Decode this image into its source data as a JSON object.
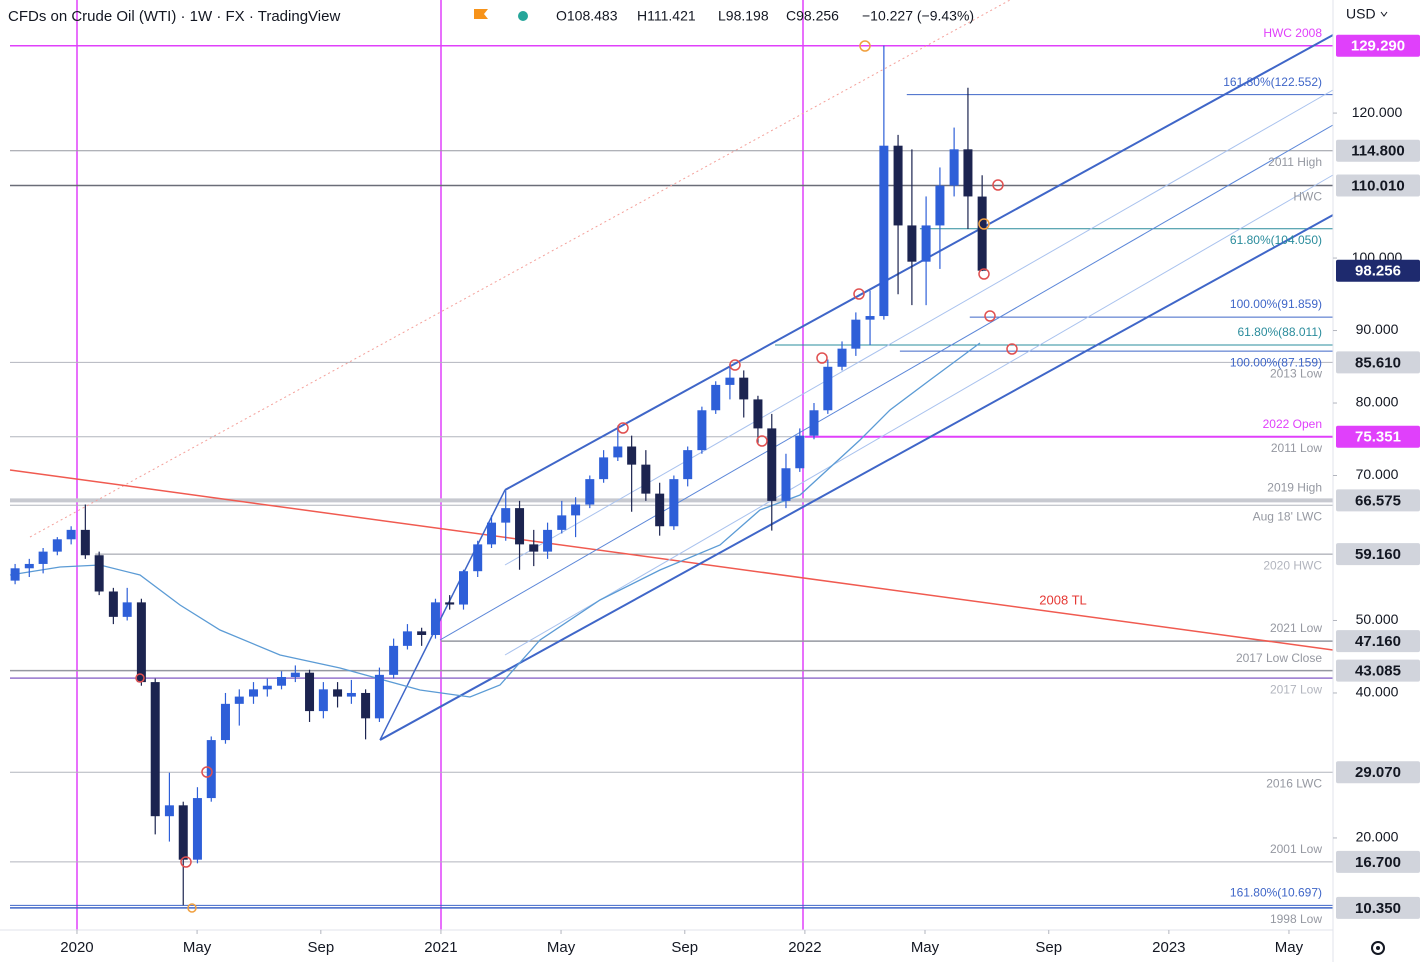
{
  "chart_data": {
    "type": "candlestick",
    "title": "CFDs on Crude Oil (WTI) · 1W · FX · TradingView",
    "ohlc_text": [
      "O108.483",
      "H111.421",
      "L98.198",
      "C98.256",
      "−10.227 (−9.43%)"
    ],
    "currency": "USD",
    "trendline_label": "2008 TL",
    "up_color": "#2e5fd8",
    "down_color": "#1c2450",
    "xlim": [
      2019.816,
      2023.451
    ],
    "ylim": [
      7.3,
      135.6
    ],
    "xticks": [
      {
        "value": 2020,
        "label": "2020"
      },
      {
        "value": 2020.33,
        "label": "May"
      },
      {
        "value": 2020.67,
        "label": "Sep"
      },
      {
        "value": 2021,
        "label": "2021"
      },
      {
        "value": 2021.33,
        "label": "May"
      },
      {
        "value": 2021.67,
        "label": "Sep"
      },
      {
        "value": 2022,
        "label": "2022"
      },
      {
        "value": 2022.33,
        "label": "May"
      },
      {
        "value": 2022.67,
        "label": "Sep"
      },
      {
        "value": 2023,
        "label": "2023"
      },
      {
        "value": 2023.33,
        "label": "May"
      }
    ],
    "yticks": [
      {
        "value": 120,
        "label": "120.000"
      },
      {
        "value": 100,
        "label": "100.000"
      },
      {
        "value": 90,
        "label": "90.000"
      },
      {
        "value": 80,
        "label": "80.000"
      },
      {
        "value": 70,
        "label": "70.000"
      },
      {
        "value": 50,
        "label": "50.000"
      },
      {
        "value": 40,
        "label": "40.000"
      },
      {
        "value": 20,
        "label": "20.000"
      }
    ],
    "x": [
      2019.83,
      2019.869,
      2019.907,
      2019.946,
      2019.984,
      2020.023,
      2020.061,
      2020.1,
      2020.138,
      2020.177,
      2020.215,
      2020.254,
      2020.292,
      2020.331,
      2020.369,
      2020.408,
      2020.446,
      2020.485,
      2020.523,
      2020.562,
      2020.6,
      2020.639,
      2020.677,
      2020.716,
      2020.754,
      2020.793,
      2020.831,
      2020.87,
      2020.908,
      2020.947,
      2020.985,
      2021.024,
      2021.062,
      2021.101,
      2021.139,
      2021.178,
      2021.216,
      2021.255,
      2021.293,
      2021.332,
      2021.37,
      2021.409,
      2021.447,
      2021.486,
      2021.524,
      2021.563,
      2021.601,
      2021.64,
      2021.678,
      2021.717,
      2021.755,
      2021.794,
      2021.832,
      2021.871,
      2021.909,
      2021.948,
      2021.986,
      2022.025,
      2022.063,
      2022.102,
      2022.14,
      2022.179,
      2022.217,
      2022.256,
      2022.294,
      2022.333,
      2022.371,
      2022.41,
      2022.448,
      2022.487
    ],
    "open": [
      55.5,
      57.2,
      57.8,
      59.5,
      61.2,
      62.5,
      59.0,
      54.0,
      50.5,
      52.5,
      41.5,
      23.0,
      24.5,
      17.0,
      25.5,
      33.5,
      38.5,
      39.5,
      40.5,
      41.0,
      42.2,
      42.8,
      37.5,
      40.5,
      39.5,
      40.0,
      36.5,
      42.5,
      46.5,
      48.5,
      48.0,
      52.5,
      52.2,
      56.8,
      60.5,
      63.5,
      65.5,
      60.5,
      59.5,
      62.5,
      64.5,
      66.0,
      69.5,
      72.5,
      74.0,
      71.5,
      67.5,
      63.0,
      69.5,
      73.5,
      79.0,
      82.5,
      83.5,
      80.5,
      76.5,
      66.5,
      71.0,
      75.5,
      79.0,
      85.0,
      87.5,
      91.5,
      92.0,
      115.5,
      104.5,
      99.5,
      104.5,
      110.0,
      115.0,
      108.483
    ],
    "high": [
      57.8,
      58.5,
      60.0,
      61.5,
      63.0,
      66.0,
      59.5,
      54.5,
      54.5,
      53.0,
      42.0,
      29.0,
      25.0,
      27.0,
      34.0,
      40.0,
      40.5,
      41.5,
      42.0,
      43.0,
      43.8,
      43.2,
      41.5,
      41.5,
      41.8,
      40.5,
      43.5,
      47.5,
      49.5,
      49.0,
      53.0,
      53.5,
      57.0,
      61.0,
      64.5,
      67.9,
      66.5,
      62.5,
      63.5,
      66.5,
      67.0,
      70.0,
      73.5,
      76.9,
      75.5,
      73.5,
      69.0,
      70.0,
      74.0,
      79.5,
      83.0,
      85.4,
      84.5,
      81.0,
      78.5,
      73.0,
      76.5,
      80.0,
      86.0,
      88.5,
      92.5,
      95.5,
      129.3,
      117.0,
      115.0,
      108.5,
      112.5,
      118.0,
      123.5,
      111.421
    ],
    "low": [
      55.0,
      56.0,
      56.5,
      59.0,
      60.5,
      58.5,
      53.5,
      49.5,
      50.0,
      41.0,
      20.5,
      19.5,
      10.7,
      16.5,
      25.0,
      33.0,
      35.5,
      38.5,
      39.5,
      40.5,
      41.5,
      36.0,
      36.5,
      38.0,
      38.5,
      33.6,
      36.0,
      42.0,
      46.0,
      46.5,
      47.5,
      51.5,
      51.5,
      56.0,
      60.0,
      61.0,
      57.0,
      57.5,
      58.5,
      62.0,
      61.5,
      65.5,
      69.0,
      72.0,
      65.0,
      66.5,
      61.7,
      62.5,
      68.5,
      73.0,
      78.5,
      80.5,
      78.0,
      74.5,
      62.4,
      65.5,
      70.5,
      75.0,
      78.5,
      84.5,
      86.5,
      88.0,
      91.5,
      95.0,
      93.5,
      93.5,
      98.5,
      108.5,
      104.0,
      98.198
    ],
    "close": [
      57.2,
      57.8,
      59.5,
      61.2,
      62.5,
      59.0,
      54.0,
      50.5,
      52.5,
      41.5,
      23.0,
      24.5,
      17.0,
      25.5,
      33.5,
      38.5,
      39.5,
      40.5,
      41.0,
      42.2,
      42.8,
      37.5,
      40.5,
      39.5,
      40.0,
      36.5,
      42.5,
      46.5,
      48.5,
      48.0,
      52.5,
      52.2,
      56.8,
      60.5,
      63.5,
      65.5,
      60.5,
      59.5,
      62.5,
      64.5,
      66.0,
      69.5,
      72.5,
      74.0,
      71.5,
      67.5,
      63.0,
      69.5,
      73.5,
      79.0,
      82.5,
      83.5,
      80.5,
      76.5,
      66.5,
      71.0,
      75.5,
      79.0,
      85.0,
      87.5,
      91.5,
      92.0,
      115.5,
      104.5,
      99.5,
      104.5,
      110.0,
      115.0,
      108.5,
      98.256
    ],
    "levels": [
      {
        "value": 129.29,
        "label": "129.290",
        "note": "HWC 2008",
        "color": "#e040fb",
        "width": 1.5,
        "note_color": "#e040fb",
        "note_side": "above",
        "box_color": "#e040fb",
        "box_text": "#ffffff"
      },
      {
        "value": 122.552,
        "note": "161.80%(122.552)",
        "color": "#3f66c8",
        "note_color": "#3f66c8",
        "note_side": "above",
        "x_start": 2022.28
      },
      {
        "value": 114.8,
        "label": "114.800",
        "note": "2011 High",
        "color": "#9598a1",
        "note_color": "#9598a1",
        "note_side": "below",
        "box_color": "#d1d4dc",
        "box_text": "#131722"
      },
      {
        "value": 110.01,
        "label": "110.010",
        "note": "HWC",
        "color": "#6a6d78",
        "width": 1.5,
        "note_color": "#9598a1",
        "note_side": "below",
        "box_color": "#d1d4dc",
        "box_text": "#131722"
      },
      {
        "value": 104.05,
        "note": "61.80%(104.050)",
        "color": "#2a8c9c",
        "note_color": "#2a8c9c",
        "note_side": "below",
        "x_start": 2022.316
      },
      {
        "value": 98.256,
        "label": "98.256",
        "line": false,
        "box_color": "#1e2a6e",
        "box_text": "#ffffff"
      },
      {
        "value": 91.859,
        "note": "100.00%(91.859)",
        "color": "#3f66c8",
        "note_color": "#3f66c8",
        "note_side": "above",
        "x_start": 2022.453
      },
      {
        "value": 88.011,
        "note": "61.80%(88.011)",
        "color": "#2a8c9c",
        "note_color": "#2a8c9c",
        "note_side": "above",
        "x_start": 2021.918
      },
      {
        "value": 87.159,
        "note": "100.00%(87.159)",
        "color": "#3f66c8",
        "note_color": "#3f66c8",
        "note_side": "below",
        "x_start": 2022.261
      },
      {
        "value": 85.61,
        "label": "85.610",
        "note": "2013 Low",
        "color": "#b2b5be",
        "note_color": "#9598a1",
        "note_side": "below",
        "box_color": "#d1d4dc",
        "box_text": "#131722"
      },
      {
        "value": 75.351,
        "note": "2011 Low",
        "color": "#b2b5be",
        "note_color": "#9598a1",
        "note_side": "below"
      },
      {
        "value": 75.351,
        "label": "75.351",
        "note": "2022 Open",
        "color": "#e040fb",
        "width": 2,
        "note_color": "#e040fb",
        "note_side": "above",
        "x_start": 2022.0,
        "box_color": "#e040fb",
        "box_text": "#ffffff"
      },
      {
        "value": 66.575,
        "label": "66.575",
        "note": "2019 High",
        "color": "#c7c9d0",
        "width": 4,
        "note_color": "#9598a1",
        "note_side": "above",
        "box_color": "#d1d4dc",
        "box_text": "#131722"
      },
      {
        "value": 65.9,
        "note": "Aug 18' LWC",
        "color": "#b2b5be",
        "note_color": "#9598a1",
        "note_side": "below"
      },
      {
        "value": 59.16,
        "label": "59.160",
        "note": "2020 HWC",
        "color": "#9598a1",
        "note_color": "#b2b5be",
        "note_side": "below",
        "x_start": 2020.05,
        "box_color": "#d1d4dc",
        "box_text": "#131722"
      },
      {
        "value": 47.16,
        "label": "47.160",
        "note": "2021 Low",
        "color": "#9598a1",
        "width": 1.5,
        "note_color": "#9598a1",
        "note_side": "above",
        "x_start": 2021.0,
        "box_color": "#d1d4dc",
        "box_text": "#131722"
      },
      {
        "value": 43.085,
        "label": "43.085",
        "note": "2017 Low Close",
        "color": "#9598a1",
        "width": 1.5,
        "note_color": "#9598a1",
        "note_side": "above",
        "box_color": "#d1d4dc",
        "box_text": "#131722"
      },
      {
        "value": 42.05,
        "note": "2017 Low",
        "color": "#9575cd",
        "width": 1.5,
        "note_color": "#b2b5be",
        "note_side": "below"
      },
      {
        "value": 29.07,
        "label": "29.070",
        "note": "2016 LWC",
        "color": "#b2b5be",
        "note_color": "#9598a1",
        "note_side": "below",
        "box_color": "#d1d4dc",
        "box_text": "#131722"
      },
      {
        "value": 16.7,
        "label": "16.700",
        "note": "2001 Low",
        "color": "#b2b5be",
        "note_color": "#9598a1",
        "note_side": "above",
        "box_color": "#d1d4dc",
        "box_text": "#131722"
      },
      {
        "value": 10.697,
        "note": "161.80%(10.697)",
        "color": "#3f66c8",
        "note_color": "#3f66c8",
        "note_side": "above"
      },
      {
        "value": 10.35,
        "label": "10.350",
        "note": "1998 Low",
        "color": "#3f66c8",
        "width": 1.5,
        "note_color": "#9598a1",
        "note_side": "below",
        "box_color": "#d1d4dc",
        "box_text": "#131722"
      }
    ]
  }
}
